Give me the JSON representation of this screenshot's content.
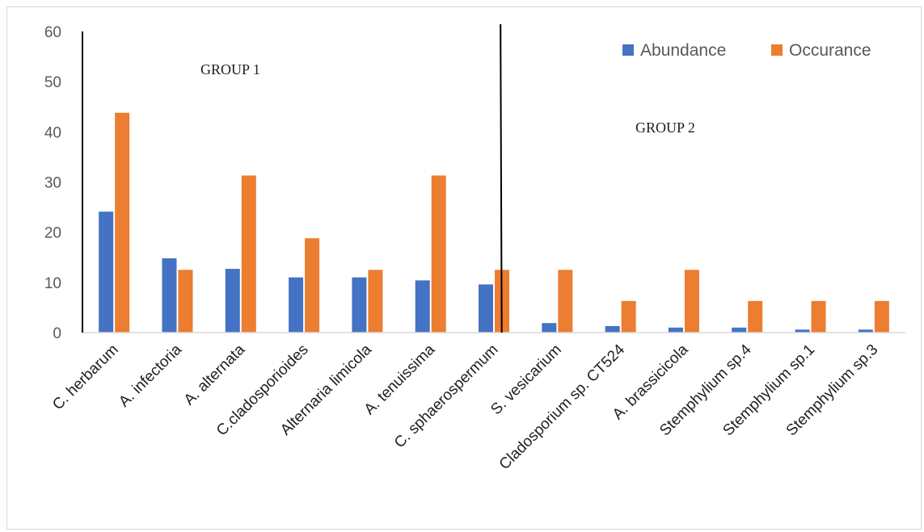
{
  "chart_data": {
    "type": "bar",
    "categories": [
      "C. herbarum",
      "A. infectoria",
      "A. alternata",
      "C.cladosporioides",
      "Alternaria limicola",
      "A. tenuissima",
      "C. sphaerospermum",
      "S. vesicarium",
      "Cladosporium sp. CT524",
      "A. brassicicola",
      "Stemphylium sp.4",
      "Stemphylium sp.1",
      "Stemphylium sp.3"
    ],
    "series": [
      {
        "name": "Abundance",
        "color": "#4472c4",
        "values": [
          24.1,
          14.8,
          12.7,
          11.0,
          11.0,
          10.4,
          9.6,
          1.9,
          1.3,
          1.0,
          1.0,
          0.6,
          0.6
        ]
      },
      {
        "name": "Occurance",
        "color": "#ed7d31",
        "values": [
          43.8,
          12.5,
          31.3,
          18.8,
          12.5,
          31.3,
          12.5,
          12.5,
          6.3,
          12.5,
          6.3,
          6.3,
          6.3
        ]
      }
    ],
    "ylim": [
      0,
      60
    ],
    "yticks": [
      0,
      10,
      20,
      30,
      40,
      50,
      60
    ],
    "legend_position": "top-right",
    "grid": false,
    "annotations": [
      {
        "text": "GROUP 1"
      },
      {
        "text": "GROUP 2"
      }
    ],
    "divider_after_category": 6
  }
}
